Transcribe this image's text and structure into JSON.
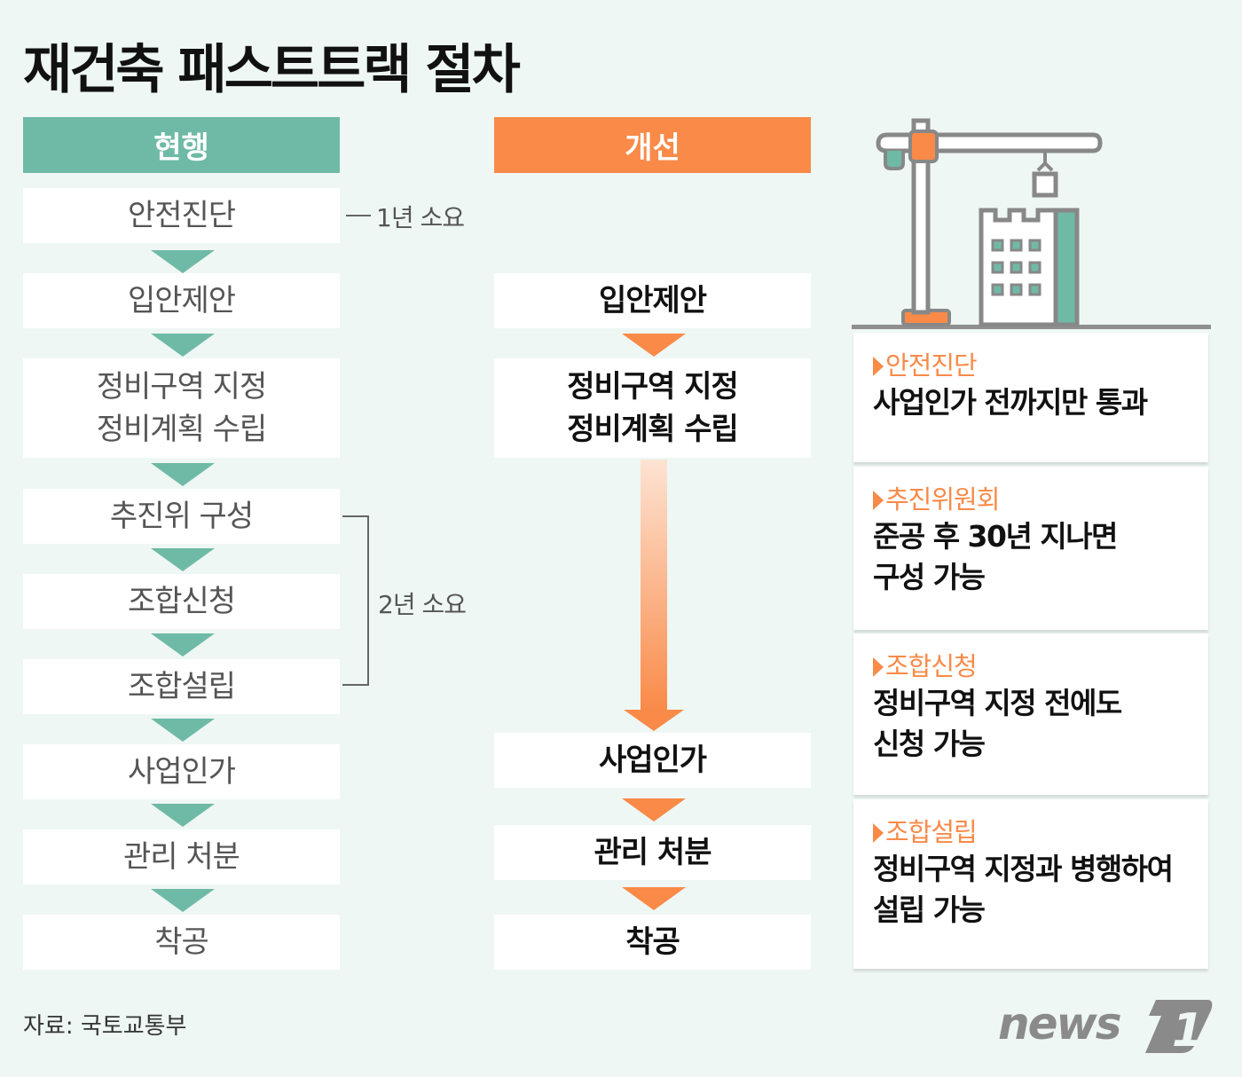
{
  "title": "재건축 패스트트랙 절차",
  "columns": {
    "current": "현행",
    "improved": "개선"
  },
  "current_steps": [
    [
      "안전진단"
    ],
    [
      "입안제안"
    ],
    [
      "정비구역 지정",
      "정비계획 수립"
    ],
    [
      "추진위 구성"
    ],
    [
      "조합신청"
    ],
    [
      "조합설립"
    ],
    [
      "사업인가"
    ],
    [
      "관리 처분"
    ],
    [
      "착공"
    ]
  ],
  "improved_steps": [
    [
      "입안제안"
    ],
    [
      "정비구역 지정",
      "정비계획 수립"
    ],
    [
      "사업인가"
    ],
    [
      "관리 처분"
    ],
    [
      "착공"
    ]
  ],
  "notes": {
    "one_year": "1년 소요",
    "two_years": "2년 소요"
  },
  "cards": [
    {
      "title": "안전진단",
      "desc": [
        "사업인가 전까지만 통과"
      ]
    },
    {
      "title": "추진위원회",
      "desc": [
        "준공 후 30년 지나면",
        "구성 가능"
      ]
    },
    {
      "title": "조합신청",
      "desc": [
        "정비구역 지정 전에도",
        "신청 가능"
      ]
    },
    {
      "title": "조합설립",
      "desc": [
        "정비구역 지정과 병행하여",
        "설립 가능"
      ]
    }
  ],
  "source": "자료: 국토교통부",
  "logo": {
    "text": "news",
    "number": "1"
  },
  "colors": {
    "green": "#6fbaa6",
    "orange": "#f98a48",
    "background": "#eef7f4"
  }
}
